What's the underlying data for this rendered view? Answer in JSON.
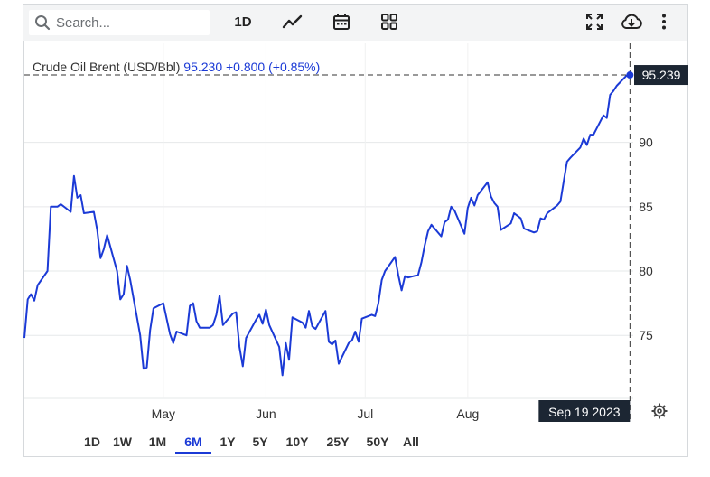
{
  "toolbar": {
    "search_placeholder": "Search...",
    "interval_label": "1D"
  },
  "info": {
    "name": "Crude Oil Brent (USD/Bbl)",
    "price": "95.230",
    "change": "+0.800 (+0.85%)"
  },
  "crosshair": {
    "price_label": "95.239",
    "date_label": "Sep 19 2023"
  },
  "ranges": [
    "1D",
    "1W",
    "1M",
    "6M",
    "1Y",
    "5Y",
    "10Y",
    "25Y",
    "50Y",
    "All"
  ],
  "active_range": "6M",
  "colors": {
    "line": "#1b3ad6",
    "label_bg": "#1c2633",
    "grid": "#e6e8ea"
  },
  "chart_data": {
    "type": "line",
    "title": "Crude Oil Brent (USD/Bbl)",
    "xlabel": "",
    "ylabel": "",
    "x_ticks": [
      "May",
      "Jun",
      "Jul",
      "Aug"
    ],
    "y_ticks": [
      75,
      80,
      85,
      90
    ],
    "ylim": [
      70.1,
      97.7
    ],
    "grid": true,
    "series": [
      {
        "name": "Crude Oil Brent (USD/Bbl)",
        "x": [
          "2023-03-20",
          "2023-03-21",
          "2023-03-22",
          "2023-03-23",
          "2023-03-24",
          "2023-03-27",
          "2023-03-28",
          "2023-03-29",
          "2023-03-30",
          "2023-03-31",
          "2023-04-03",
          "2023-04-04",
          "2023-04-05",
          "2023-04-06",
          "2023-04-07",
          "2023-04-10",
          "2023-04-11",
          "2023-04-12",
          "2023-04-13",
          "2023-04-14",
          "2023-04-17",
          "2023-04-18",
          "2023-04-19",
          "2023-04-20",
          "2023-04-21",
          "2023-04-24",
          "2023-04-25",
          "2023-04-26",
          "2023-04-27",
          "2023-04-28",
          "2023-05-01",
          "2023-05-02",
          "2023-05-03",
          "2023-05-04",
          "2023-05-05",
          "2023-05-08",
          "2023-05-09",
          "2023-05-10",
          "2023-05-11",
          "2023-05-12",
          "2023-05-15",
          "2023-05-16",
          "2023-05-17",
          "2023-05-18",
          "2023-05-19",
          "2023-05-22",
          "2023-05-23",
          "2023-05-24",
          "2023-05-25",
          "2023-05-26",
          "2023-05-29",
          "2023-05-30",
          "2023-05-31",
          "2023-06-01",
          "2023-06-02",
          "2023-06-05",
          "2023-06-06",
          "2023-06-07",
          "2023-06-08",
          "2023-06-09",
          "2023-06-12",
          "2023-06-13",
          "2023-06-14",
          "2023-06-15",
          "2023-06-16",
          "2023-06-19",
          "2023-06-20",
          "2023-06-21",
          "2023-06-22",
          "2023-06-23",
          "2023-06-26",
          "2023-06-27",
          "2023-06-28",
          "2023-06-29",
          "2023-06-30",
          "2023-07-03",
          "2023-07-04",
          "2023-07-05",
          "2023-07-06",
          "2023-07-07",
          "2023-07-10",
          "2023-07-11",
          "2023-07-12",
          "2023-07-13",
          "2023-07-14",
          "2023-07-17",
          "2023-07-18",
          "2023-07-19",
          "2023-07-20",
          "2023-07-21",
          "2023-07-24",
          "2023-07-25",
          "2023-07-26",
          "2023-07-27",
          "2023-07-28",
          "2023-07-31",
          "2023-08-01",
          "2023-08-02",
          "2023-08-03",
          "2023-08-04",
          "2023-08-07",
          "2023-08-08",
          "2023-08-09",
          "2023-08-10",
          "2023-08-11",
          "2023-08-14",
          "2023-08-15",
          "2023-08-16",
          "2023-08-17",
          "2023-08-18",
          "2023-08-21",
          "2023-08-22",
          "2023-08-23",
          "2023-08-24",
          "2023-08-25",
          "2023-08-28",
          "2023-08-29",
          "2023-08-30",
          "2023-08-31",
          "2023-09-01",
          "2023-09-04",
          "2023-09-05",
          "2023-09-06",
          "2023-09-07",
          "2023-09-08",
          "2023-09-11",
          "2023-09-12",
          "2023-09-13",
          "2023-09-14",
          "2023-09-15",
          "2023-09-18",
          "2023-09-19"
        ],
        "values": [
          74.8,
          77.8,
          78.2,
          77.7,
          78.9,
          80.0,
          85.0,
          85.0,
          85.0,
          85.2,
          84.6,
          87.4,
          85.7,
          85.9,
          84.5,
          84.6,
          83.2,
          81.0,
          81.7,
          82.8,
          80.0,
          77.8,
          78.2,
          80.4,
          79.3,
          75.0,
          72.4,
          72.5,
          75.4,
          77.1,
          77.5,
          76.3,
          75.1,
          74.4,
          75.3,
          75.0,
          77.3,
          77.5,
          76.1,
          75.6,
          75.6,
          75.8,
          76.6,
          78.1,
          75.8,
          76.7,
          76.8,
          74.1,
          72.6,
          74.8,
          76.2,
          76.6,
          75.9,
          77.0,
          75.8,
          74.1,
          71.9,
          74.4,
          73.1,
          76.4,
          76.0,
          75.6,
          76.9,
          75.7,
          75.5,
          76.9,
          74.5,
          74.3,
          74.6,
          72.8,
          74.4,
          74.6,
          75.3,
          74.5,
          76.3,
          76.6,
          76.5,
          77.5,
          79.3,
          80.0,
          81.1,
          79.7,
          78.5,
          79.6,
          79.5,
          79.7,
          80.7,
          82.0,
          83.1,
          83.6,
          82.7,
          83.8,
          84.0,
          85.0,
          84.7,
          82.9,
          84.9,
          85.7,
          85.1,
          85.9,
          86.9,
          85.8,
          85.3,
          85.0,
          83.2,
          83.7,
          84.5,
          84.3,
          84.1,
          83.3,
          83.0,
          83.1,
          84.1,
          84.0,
          84.5,
          85.1,
          85.4,
          87.0,
          88.5,
          88.8,
          89.6,
          90.3,
          89.8,
          90.6,
          90.6,
          92.1,
          91.9,
          93.7,
          94.0,
          94.4,
          95.2,
          95.239
        ]
      }
    ]
  }
}
